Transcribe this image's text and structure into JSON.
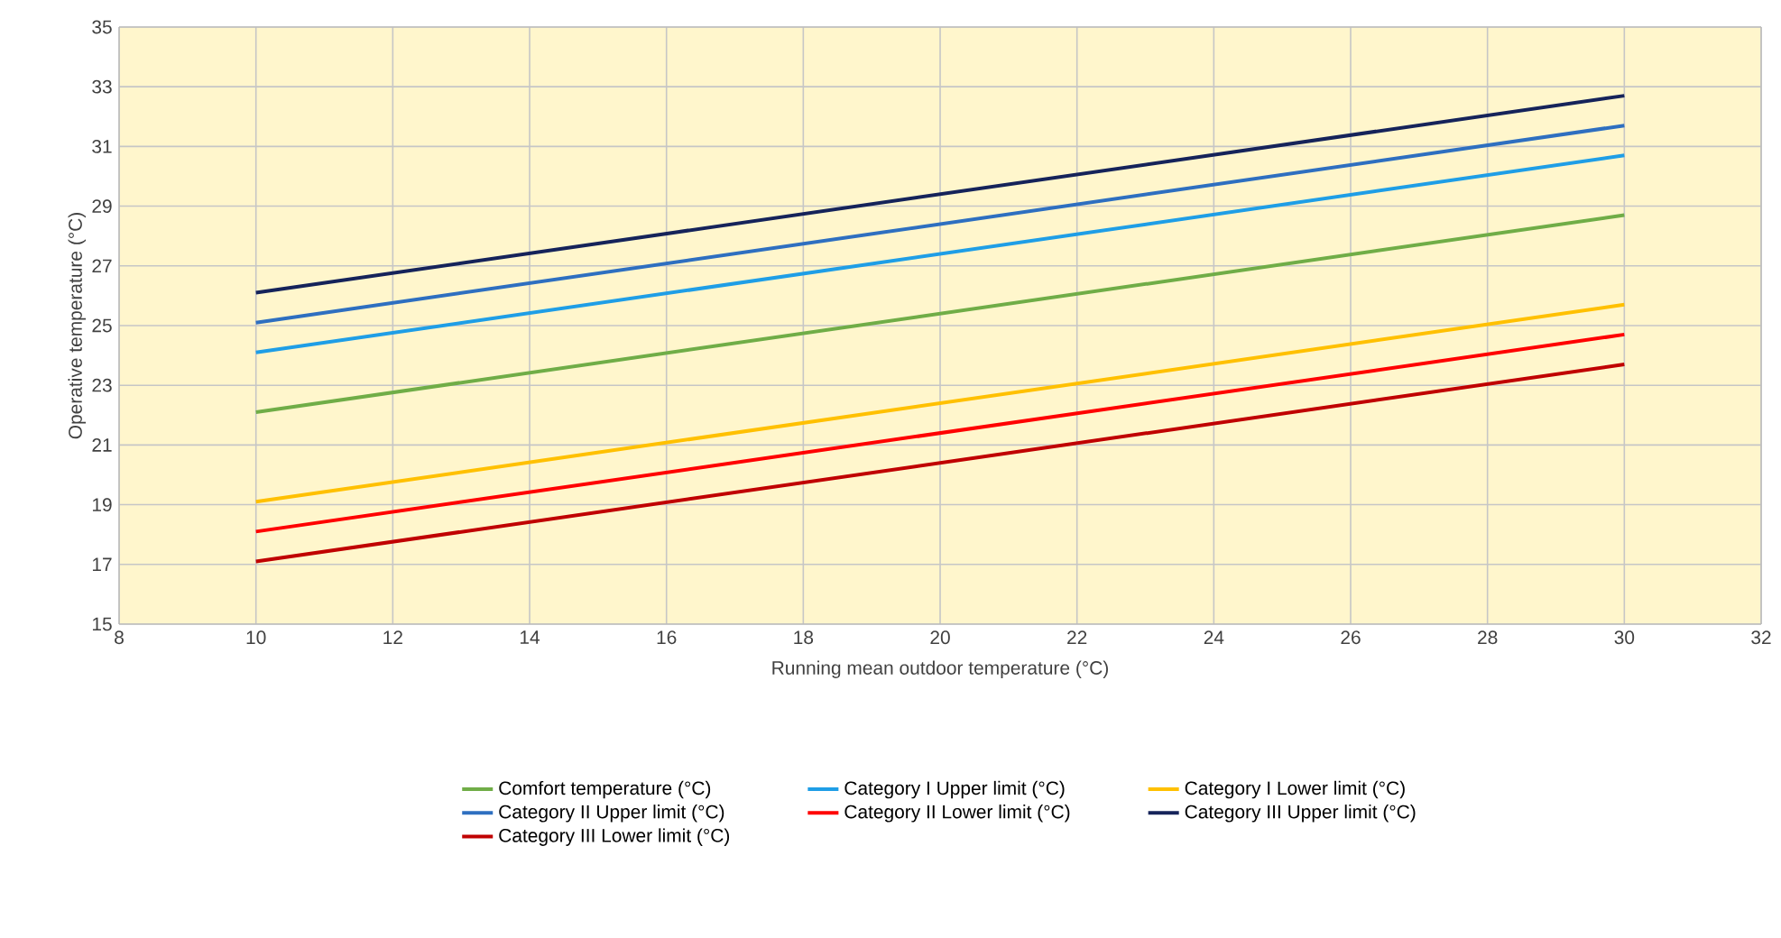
{
  "chart_data": {
    "type": "line",
    "xlabel": "Running mean outdoor temperature (°C)",
    "ylabel": "Operative temperature (°C)",
    "xlim": [
      8,
      32
    ],
    "xticks": [
      8,
      10,
      12,
      14,
      16,
      18,
      20,
      22,
      24,
      26,
      28,
      30,
      32
    ],
    "ylim": [
      15,
      35
    ],
    "yticks": [
      15,
      17,
      19,
      21,
      23,
      25,
      27,
      29,
      31,
      33,
      35
    ],
    "grid": true,
    "legend": "bottom",
    "x": [
      10,
      30
    ],
    "series": [
      {
        "name": "Comfort temperature (°C)",
        "color": "#70ad47",
        "values": [
          22.1,
          28.7
        ]
      },
      {
        "name": "Category I Upper limit  (°C)",
        "color": "#1f9ee6",
        "values": [
          24.1,
          30.7
        ]
      },
      {
        "name": "Category I Lower limit  (°C)",
        "color": "#ffc000",
        "values": [
          19.1,
          25.7
        ]
      },
      {
        "name": "Category II Upper limit  (°C)",
        "color": "#2e6fc0",
        "values": [
          25.1,
          31.7
        ]
      },
      {
        "name": "Category II Lower limit  (°C)",
        "color": "#ff0000",
        "values": [
          18.1,
          24.7
        ]
      },
      {
        "name": "Category III Upper limit  (°C)",
        "color": "#15235a",
        "values": [
          26.1,
          32.7
        ]
      },
      {
        "name": "Category III Lower limit  (°C)",
        "color": "#c00000",
        "values": [
          17.1,
          23.7
        ]
      }
    ]
  }
}
